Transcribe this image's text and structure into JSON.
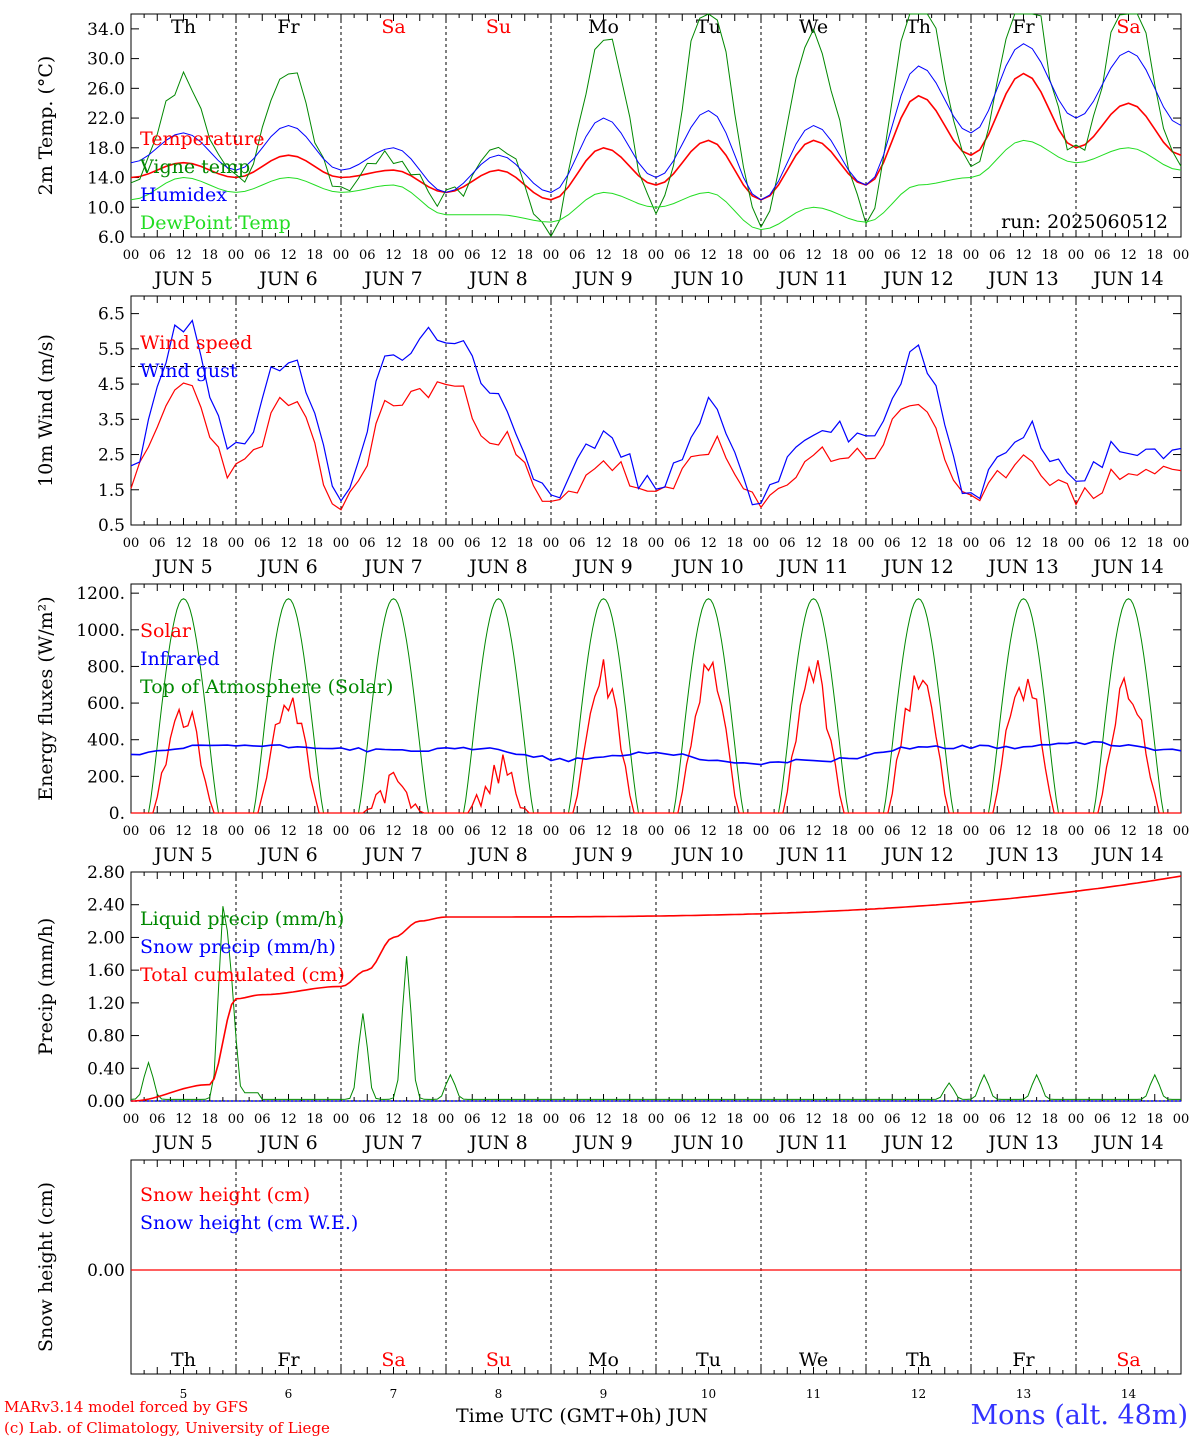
{
  "colors": {
    "red": "#ff0000",
    "green": "#008800",
    "blue": "#0000ff",
    "lightgreen": "#22dd22",
    "station": "#3333ff"
  },
  "footer": {
    "credit_line1": "MARv3.14 model forced by GFS",
    "credit_line2": "(c) Lab. of Climatology, University of Liege",
    "x_axis_title": "Time UTC (GMT+0h) JUN",
    "station": "Mons (alt. 48m)"
  },
  "axis": {
    "hour_labels": [
      "00",
      "06",
      "12",
      "18"
    ],
    "date_labels": [
      "JUN  5",
      "JUN  6",
      "JUN  7",
      "JUN  8",
      "JUN  9",
      "JUN 10",
      "JUN 11",
      "JUN 12",
      "JUN 13",
      "JUN 14"
    ],
    "weekdays": [
      {
        "label": "Th",
        "color": "black"
      },
      {
        "label": "Fr",
        "color": "black"
      },
      {
        "label": "Sa",
        "color": "red"
      },
      {
        "label": "Su",
        "color": "red"
      },
      {
        "label": "Mo",
        "color": "black"
      },
      {
        "label": "Tu",
        "color": "black"
      },
      {
        "label": "We",
        "color": "black"
      },
      {
        "label": "Th",
        "color": "black"
      },
      {
        "label": "Fr",
        "color": "black"
      },
      {
        "label": "Sa",
        "color": "red"
      }
    ],
    "day_numbers": [
      "5",
      "6",
      "7",
      "8",
      "9",
      "10",
      "11",
      "12",
      "13",
      "14"
    ]
  },
  "chart_data": [
    {
      "type": "line",
      "ylabel": "2m Temp. (°C)",
      "ylim": [
        6,
        36
      ],
      "yticks": [
        "6.0",
        "10.0",
        "14.0",
        "18.0",
        "22.0",
        "26.0",
        "30.0",
        "34.0"
      ],
      "annotation": "run: 2025060512",
      "x_knots_hours": [
        0,
        12,
        24,
        36,
        48,
        60,
        72,
        84,
        96,
        108,
        120,
        132,
        144,
        156,
        168,
        180,
        192,
        204,
        216,
        228,
        240
      ],
      "series": [
        {
          "name": "Temperature",
          "color": "#ff0000",
          "values": [
            14,
            16,
            14,
            17,
            14,
            15,
            12,
            15,
            11,
            18,
            13,
            19,
            11,
            19,
            13,
            25,
            17,
            28,
            18,
            24,
            17
          ]
        },
        {
          "name": "Vigne temp",
          "color": "#008800",
          "values": [
            12,
            27,
            13,
            28,
            12,
            17,
            11,
            18,
            7,
            33,
            10,
            38,
            7,
            33,
            9,
            41,
            16,
            40,
            17,
            38,
            15
          ]
        },
        {
          "name": "Humidex",
          "color": "#0000ff",
          "values": [
            16,
            20,
            15,
            21,
            15,
            18,
            12,
            17,
            12,
            22,
            14,
            23,
            11,
            21,
            13,
            29,
            20,
            32,
            22,
            31,
            21
          ]
        },
        {
          "name": "DewPoint Temp",
          "color": "#22dd22",
          "values": [
            11,
            14,
            12,
            14,
            12,
            13,
            9,
            9,
            8,
            12,
            10,
            12,
            7,
            10,
            8,
            13,
            14,
            19,
            16,
            18,
            15
          ]
        }
      ]
    },
    {
      "type": "line",
      "ylabel": "10m Wind (m/s)",
      "ylim": [
        0.5,
        7.0
      ],
      "yticks": [
        "0.5",
        "1.5",
        "2.5",
        "3.5",
        "4.5",
        "5.5",
        "6.5"
      ],
      "reference_line": 5.0,
      "x_knots_hours": [
        0,
        12,
        24,
        36,
        48,
        60,
        72,
        84,
        96,
        108,
        120,
        132,
        144,
        156,
        168,
        180,
        192,
        204,
        216,
        228,
        240
      ],
      "series": [
        {
          "name": "Wind speed",
          "color": "#ff0000",
          "values": [
            1.8,
            4.5,
            2.0,
            4.0,
            1.0,
            4.0,
            4.5,
            3.0,
            1.0,
            2.3,
            1.2,
            2.8,
            1.0,
            2.5,
            2.5,
            4.0,
            1.0,
            2.5,
            1.3,
            2.0,
            2.0
          ]
        },
        {
          "name": "Wind gust",
          "color": "#0000ff",
          "values": [
            2.3,
            6.2,
            2.7,
            5.3,
            1.5,
            5.3,
            6.0,
            4.0,
            1.5,
            3.0,
            1.5,
            3.8,
            1.2,
            3.3,
            3.0,
            5.3,
            1.3,
            3.3,
            1.8,
            2.8,
            2.7
          ]
        }
      ]
    },
    {
      "type": "line",
      "ylabel": "Energy fluxes (W/m²)",
      "ylim": [
        0,
        1250
      ],
      "yticks": [
        "0.",
        "200.",
        "400.",
        "600.",
        "800.",
        "1000.",
        "1200."
      ],
      "toa_daily_peak": 1170,
      "solar_daily_peaks": [
        650,
        720,
        280,
        330,
        870,
        880,
        900,
        880,
        880,
        810
      ],
      "infrared_knots": [
        320,
        370,
        360,
        340,
        350,
        290,
        330,
        270,
        290,
        360,
        360,
        380,
        340
      ],
      "series": [
        {
          "name": "Solar",
          "color": "#ff0000"
        },
        {
          "name": "Infrared",
          "color": "#0000ff"
        },
        {
          "name": "Top of Atmosphere (Solar)",
          "color": "#008800"
        }
      ]
    },
    {
      "type": "line",
      "ylabel": "Precip (mm/h)",
      "ylim": [
        0,
        2.8
      ],
      "yticks": [
        "0.00",
        "0.40",
        "0.80",
        "1.20",
        "1.60",
        "2.00",
        "2.40",
        "2.80"
      ],
      "cumulated_knots_hours": [
        0,
        18,
        24,
        30,
        48,
        54,
        60,
        66,
        72,
        240
      ],
      "series": [
        {
          "name": "Liquid precip (mm/h)",
          "color": "#008800",
          "peaks": [
            {
              "h": 4,
              "v": 0.45
            },
            {
              "h": 21,
              "v": 2.2
            },
            {
              "h": 23,
              "v": 1.2
            },
            {
              "h": 53,
              "v": 1.05
            },
            {
              "h": 63,
              "v": 1.75
            },
            {
              "h": 73,
              "v": 0.3
            },
            {
              "h": 187,
              "v": 0.2
            },
            {
              "h": 195,
              "v": 0.3
            },
            {
              "h": 207,
              "v": 0.3
            },
            {
              "h": 234,
              "v": 0.3
            }
          ]
        },
        {
          "name": "Snow precip (mm/h)",
          "color": "#0000ff",
          "values": [
            0
          ]
        },
        {
          "name": "Total cumulated (cm)",
          "color": "#ff0000",
          "values": [
            0,
            0.2,
            1.25,
            1.3,
            1.4,
            1.6,
            2.0,
            2.2,
            2.25,
            2.75
          ]
        }
      ]
    },
    {
      "type": "line",
      "ylabel": "Snow height (cm)",
      "ytick": "0.00",
      "series": [
        {
          "name": "Snow height (cm)",
          "color": "#ff0000",
          "values": [
            0
          ]
        },
        {
          "name": "Snow height (cm W.E.)",
          "color": "#0000ff",
          "values": [
            0
          ]
        }
      ]
    }
  ]
}
